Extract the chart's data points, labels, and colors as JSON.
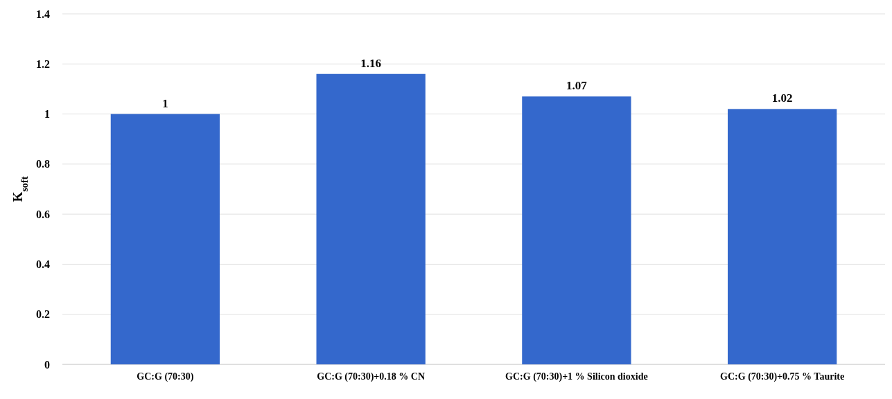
{
  "chart_data": {
    "type": "bar",
    "ylabel": "K$_{soft}$",
    "categories": [
      "GC:G (70:30)",
      "GC:G (70:30)+0.18 % CN",
      "GC:G (70:30)+1 % Silicon dioxide",
      "GC:G (70:30)+0.75 % Taurite"
    ],
    "values": [
      1,
      1.16,
      1.07,
      1.02
    ],
    "color": "#3468cc",
    "ylim": [
      0,
      1.4
    ],
    "yticks": [
      0,
      0.2,
      0.4,
      0.6,
      0.8,
      1,
      1.2,
      1.4
    ],
    "grid": "y",
    "data_labels": true
  }
}
